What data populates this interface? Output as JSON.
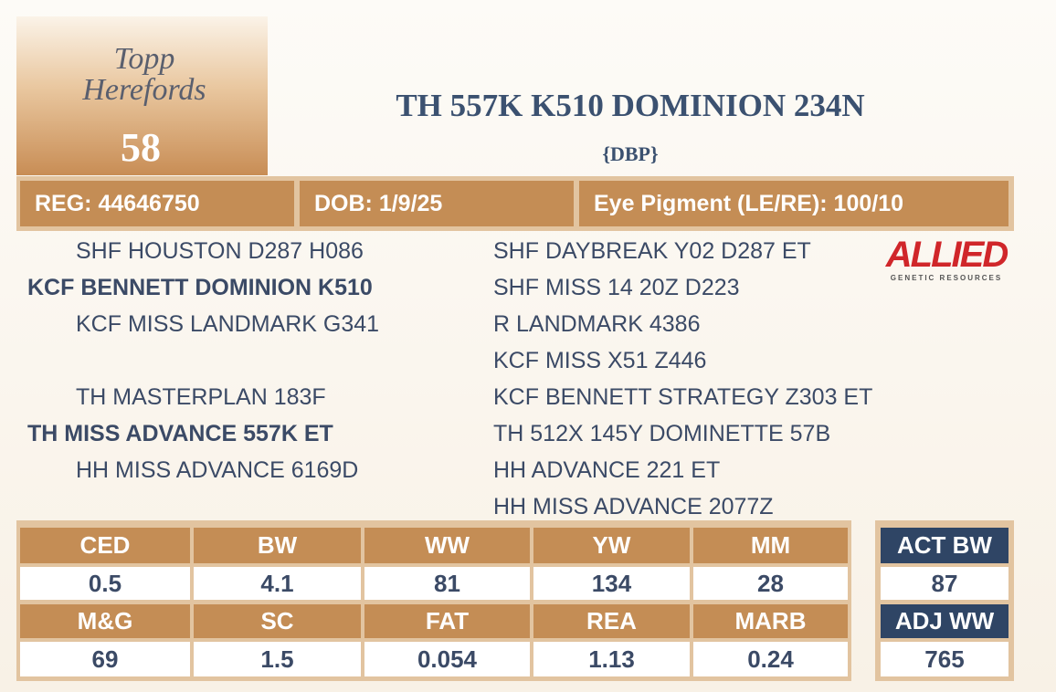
{
  "logo": {
    "name": "Topp Herefords",
    "lot": "58"
  },
  "header": {
    "title": "TH 557K K510 DOMINION 234N",
    "designation": "{DBP}"
  },
  "info": [
    "REG: 44646750",
    "DOB: 1/9/25",
    "Eye Pigment (LE/RE): 100/10"
  ],
  "sponsor": {
    "name": "ALLIED",
    "tagline": "GENETIC RESOURCES"
  },
  "pedigree": {
    "sire": {
      "name": "KCF BENNETT DOMINION K510",
      "sire": "SHF HOUSTON D287 H086",
      "dam": "KCF MISS LANDMARK G341"
    },
    "dam": {
      "name": "TH MISS ADVANCE 557K ET",
      "sire": "TH MASTERPLAN 183F",
      "dam": "HH MISS ADVANCE 6169D"
    },
    "grandparents": [
      "SHF DAYBREAK Y02 D287 ET",
      "SHF MISS 14 20Z D223",
      "R LANDMARK 4386",
      "KCF MISS X51 Z446",
      "KCF BENNETT STRATEGY Z303 ET",
      "TH 512X 145Y DOMINETTE 57B",
      "HH ADVANCE 221 ET",
      "HH MISS ADVANCE 2077Z"
    ]
  },
  "epds": {
    "rows": [
      [
        {
          "label": "CED",
          "value": "0.5"
        },
        {
          "label": "BW",
          "value": "4.1"
        },
        {
          "label": "WW",
          "value": "81"
        },
        {
          "label": "YW",
          "value": "134"
        },
        {
          "label": "MM",
          "value": "28"
        }
      ],
      [
        {
          "label": "M&G",
          "value": "69"
        },
        {
          "label": "SC",
          "value": "1.5"
        },
        {
          "label": "FAT",
          "value": "0.054"
        },
        {
          "label": "REA",
          "value": "1.13"
        },
        {
          "label": "MARB",
          "value": "0.24"
        }
      ]
    ]
  },
  "actuals": [
    {
      "label": "ACT BW",
      "value": "87"
    },
    {
      "label": "ADJ WW",
      "value": "765"
    }
  ]
}
